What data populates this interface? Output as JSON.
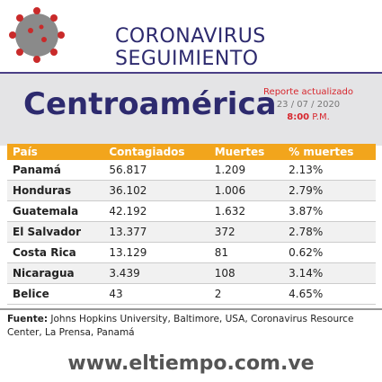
{
  "header": {
    "title": "CORONAVIRUS SEGUIMIENTO"
  },
  "region": "Centroamérica",
  "report": {
    "label": "Reporte actualizado",
    "date": "23 / 07 / 2020",
    "time": "8:00",
    "period": "P.M."
  },
  "table": {
    "columns": [
      "País",
      "Contagiados",
      "Muertes",
      "% muertes"
    ],
    "rows": [
      [
        "Panamá",
        "56.817",
        "1.209",
        "2.13%"
      ],
      [
        "Honduras",
        "36.102",
        "1.006",
        "2.79%"
      ],
      [
        "Guatemala",
        "42.192",
        "1.632",
        "3.87%"
      ],
      [
        "El Salvador",
        "13.377",
        "372",
        "2.78%"
      ],
      [
        "Costa Rica",
        "13.129",
        "81",
        "0.62%"
      ],
      [
        "Nicaragua",
        "3.439",
        "108",
        "3.14%"
      ],
      [
        "Belice",
        "43",
        "2",
        "4.65%"
      ]
    ]
  },
  "footer": {
    "label": "Fuente:",
    "text": "Johns Hopkins University, Baltimore, USA, Coronavirus Resource Center, La Prensa, Panamá"
  },
  "url": "www.eltiempo.com.ve"
}
